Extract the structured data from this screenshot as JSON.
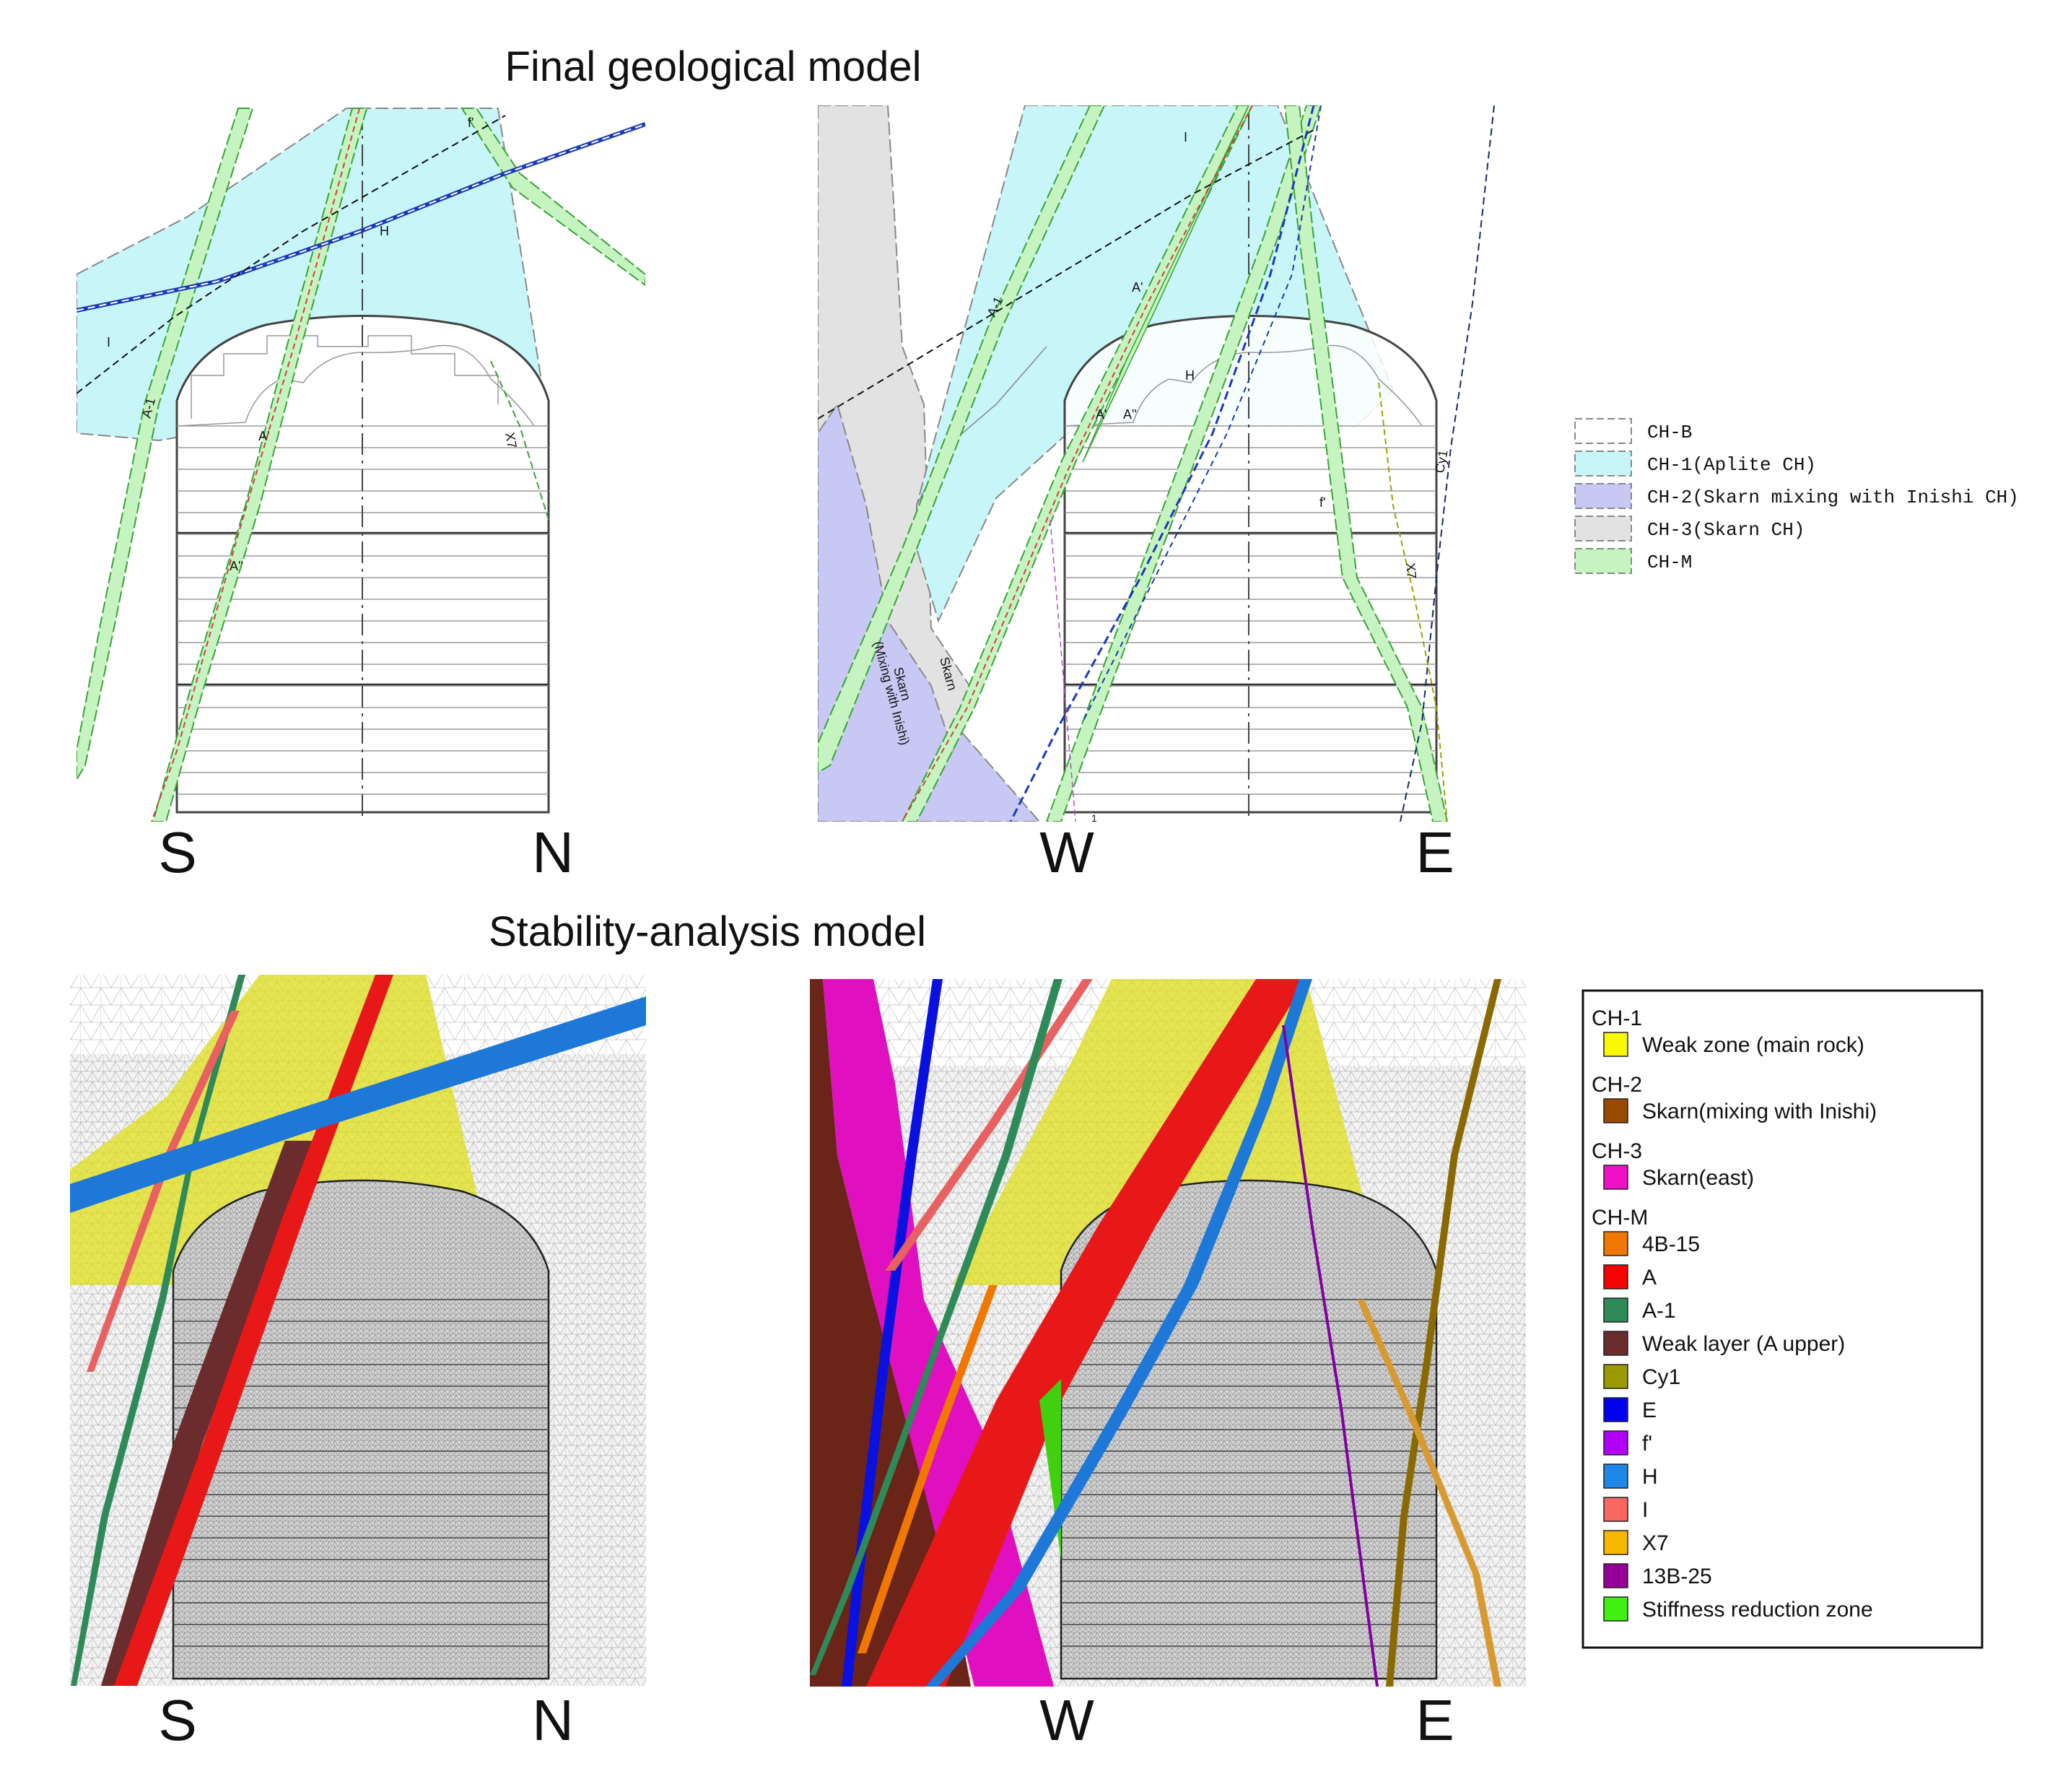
{
  "titles": {
    "top": "Final geological model",
    "bottom": "Stability-analysis model"
  },
  "directions": {
    "top_left": {
      "left": "S",
      "right": "N"
    },
    "top_right": {
      "left": "W",
      "right": "E"
    },
    "bottom_left": {
      "left": "S",
      "right": "N"
    },
    "bottom_right": {
      "left": "W",
      "right": "E"
    }
  },
  "geo_labels": {
    "left": {
      "A1": "A-1",
      "I": "I",
      "H": "H",
      "Ap": "A'",
      "App": "A''",
      "X7": "X7",
      "fp": "f'"
    },
    "right": {
      "A1": "A-1",
      "I": "I",
      "Ap": "A'",
      "App": "A''",
      "Ap2": "A'",
      "H": "H",
      "fp": "f'",
      "X7": "X7",
      "Cy1": "Cy1",
      "Skarn": "Skarn",
      "SkarnMix1": "Skarn",
      "SkarnMix2": "(Mixing with Inishi)",
      "one": "1"
    }
  },
  "legend_top": [
    {
      "label": "CH-B",
      "color": "#ffffff"
    },
    {
      "label": "CH-1(Aplite CH)",
      "color": "#c8f6f8"
    },
    {
      "label": "CH-2(Skarn mixing with Inishi CH)",
      "color": "#c8c8f4"
    },
    {
      "label": "CH-3(Skarn CH)",
      "color": "#e2e2e2"
    },
    {
      "label": "CH-M",
      "color": "#c6f4c0"
    }
  ],
  "legend_bottom": {
    "groups": [
      {
        "title": "CH-1",
        "items": [
          {
            "label": "Weak zone (main rock)",
            "color": "#f8f800"
          }
        ]
      },
      {
        "title": "CH-2",
        "items": [
          {
            "label": "Skarn(mixing with Inishi)",
            "color": "#9a4a00"
          }
        ]
      },
      {
        "title": "CH-3",
        "items": [
          {
            "label": "Skarn(east)",
            "color": "#f010c8"
          }
        ]
      },
      {
        "title": "CH-M",
        "items": [
          {
            "label": "4B-15",
            "color": "#f07800"
          },
          {
            "label": "A",
            "color": "#f80000"
          },
          {
            "label": "A-1",
            "color": "#2e8a58"
          },
          {
            "label": "Weak layer (A upper)",
            "color": "#6a2c2c"
          },
          {
            "label": "Cy1",
            "color": "#9a9a00"
          },
          {
            "label": "E",
            "color": "#0000f0"
          },
          {
            "label": "f'",
            "color": "#b000f8"
          },
          {
            "label": "H",
            "color": "#1e88e8"
          },
          {
            "label": "I",
            "color": "#f86860"
          },
          {
            "label": "X7",
            "color": "#f8b800"
          },
          {
            "label": "13B-25",
            "color": "#960096"
          },
          {
            "label": "Stiffness reduction zone",
            "color": "#40f010"
          }
        ]
      }
    ]
  }
}
